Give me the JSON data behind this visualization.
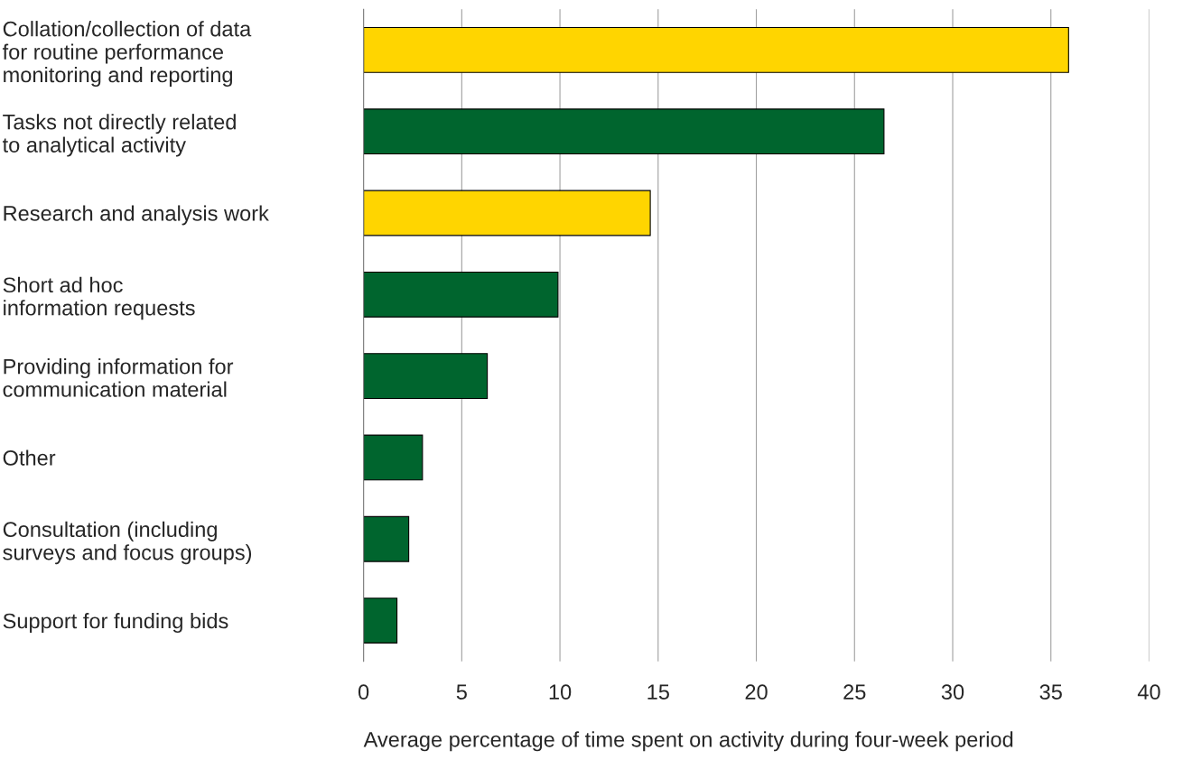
{
  "chart_data": {
    "type": "bar",
    "orientation": "horizontal",
    "categories": [
      "Collation/collection of data\nfor routine performance\nmonitoring and reporting",
      "Tasks not directly related\nto analytical activity",
      "Research and analysis work",
      "Short ad hoc\ninformation requests",
      "Providing information for\ncommunication material",
      "Other",
      "Consultation (including\nsurveys and focus groups)",
      "Support for funding bids"
    ],
    "values": [
      35.9,
      26.5,
      14.6,
      9.9,
      6.3,
      3.0,
      2.3,
      1.7
    ],
    "colors": [
      "#ffd500",
      "#00652e",
      "#ffd500",
      "#00652e",
      "#00652e",
      "#00652e",
      "#00652e",
      "#00652e"
    ],
    "xlabel": "Average percentage of time spent on activity during four-week period",
    "xlim": [
      0,
      40
    ],
    "xticks": [
      0,
      5,
      10,
      15,
      20,
      25,
      30,
      35,
      40
    ],
    "grid": "x",
    "legend": false
  }
}
